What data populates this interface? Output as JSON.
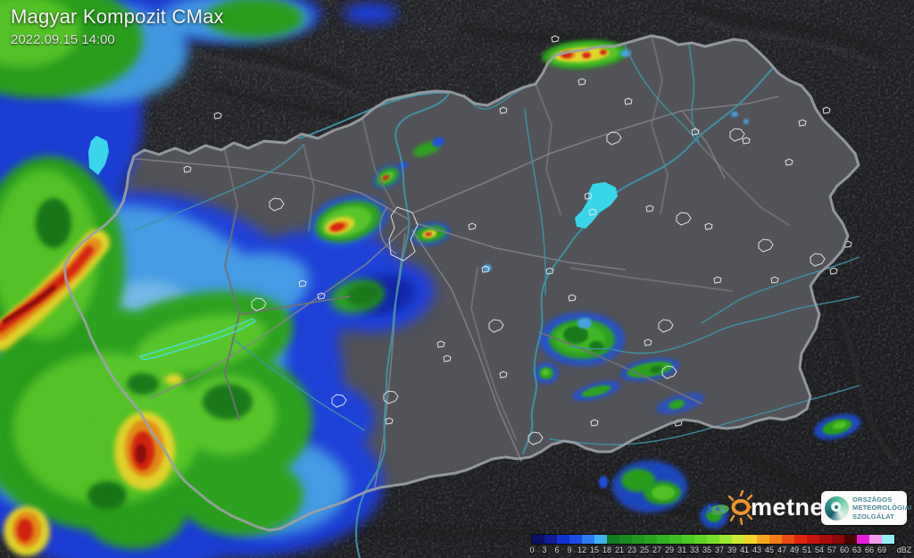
{
  "header": {
    "title": "Magyar Kompozit CMax",
    "timestamp": "2022.09.15 14:00"
  },
  "legend": {
    "unit": "dBZ",
    "stops": [
      {
        "label": "0",
        "color": "#0a1166"
      },
      {
        "label": "3",
        "color": "#0d1d92"
      },
      {
        "label": "6",
        "color": "#1331cf"
      },
      {
        "label": "9",
        "color": "#1c4be8"
      },
      {
        "label": "12",
        "color": "#2d7df2"
      },
      {
        "label": "15",
        "color": "#3fb2f2"
      },
      {
        "label": "18",
        "color": "#127a1f"
      },
      {
        "label": "21",
        "color": "#198a1f"
      },
      {
        "label": "23",
        "color": "#219720"
      },
      {
        "label": "25",
        "color": "#29a421"
      },
      {
        "label": "27",
        "color": "#32b122"
      },
      {
        "label": "29",
        "color": "#3dbe23"
      },
      {
        "label": "31",
        "color": "#4cca26"
      },
      {
        "label": "33",
        "color": "#60d529"
      },
      {
        "label": "35",
        "color": "#79df2d"
      },
      {
        "label": "37",
        "color": "#9de832"
      },
      {
        "label": "39",
        "color": "#cfe933"
      },
      {
        "label": "41",
        "color": "#f2d52a"
      },
      {
        "label": "43",
        "color": "#f5a81f"
      },
      {
        "label": "45",
        "color": "#f27c18"
      },
      {
        "label": "47",
        "color": "#ec4b12"
      },
      {
        "label": "49",
        "color": "#e0260f"
      },
      {
        "label": "51",
        "color": "#c9150e"
      },
      {
        "label": "54",
        "color": "#aa0d0b"
      },
      {
        "label": "57",
        "color": "#8c0909"
      },
      {
        "label": "60",
        "color": "#4a0505"
      },
      {
        "label": "63",
        "color": "#e81ddb"
      },
      {
        "label": "66",
        "color": "#f49bee"
      },
      {
        "label": "69",
        "color": "#97eef2"
      }
    ]
  },
  "branding": {
    "metnet": {
      "label": "metnet"
    },
    "omsz": {
      "lines": [
        "ORSZÁGOS",
        "METEOROLÓGIAI",
        "SZOLGÁLAT"
      ]
    }
  }
}
